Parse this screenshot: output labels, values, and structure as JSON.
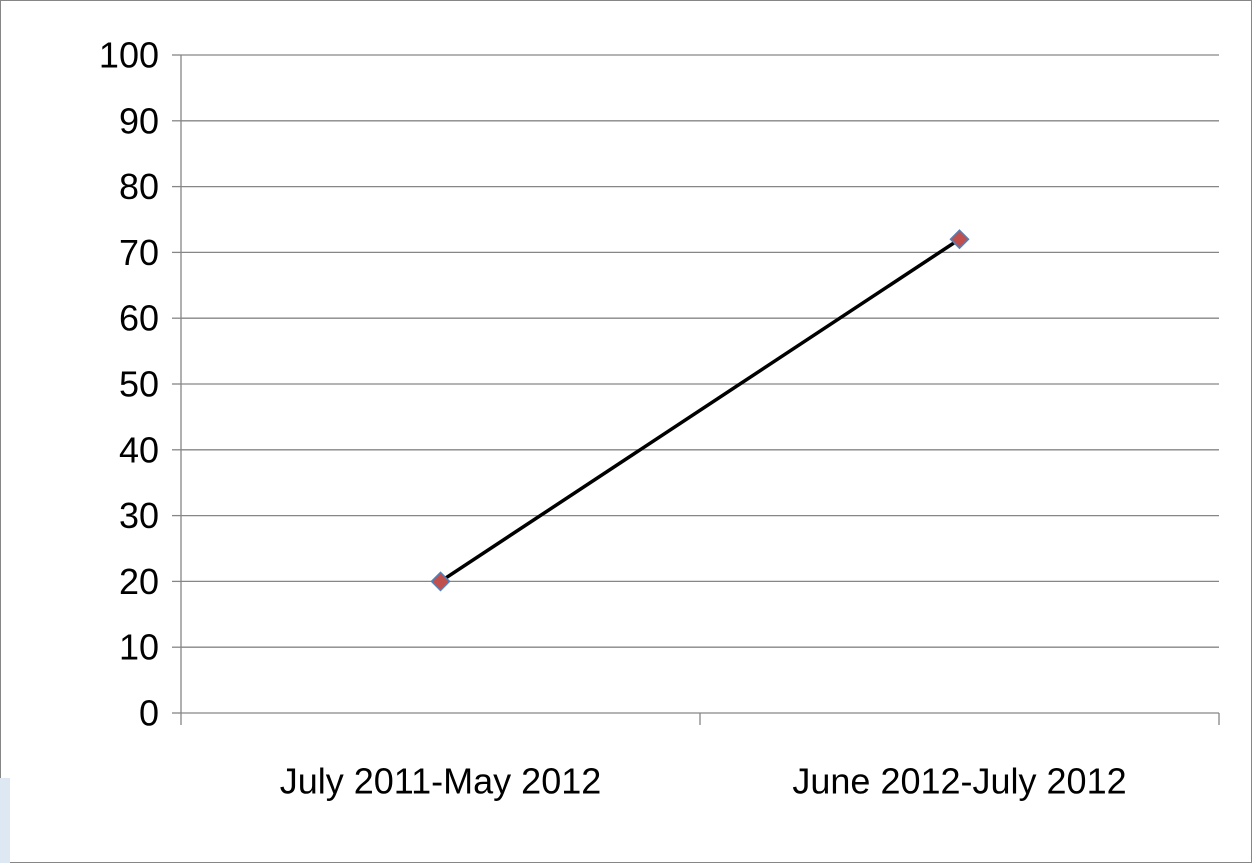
{
  "chart_data": {
    "type": "line",
    "title": "",
    "xlabel": "",
    "ylabel": "",
    "categories": [
      "July 2011-May 2012",
      "June 2012-July 2012"
    ],
    "series": [
      {
        "values": [
          20,
          72
        ]
      }
    ],
    "ylim": [
      0,
      100
    ],
    "yticks": [
      0,
      10,
      20,
      30,
      40,
      50,
      60,
      70,
      80,
      90,
      100
    ],
    "grid": "horizontal",
    "legend": "none",
    "colors": {
      "line": "#000000",
      "marker_fill": "#c0504d",
      "marker_stroke": "#4f81bd",
      "gridline": "#868686",
      "axis": "#868686"
    }
  }
}
